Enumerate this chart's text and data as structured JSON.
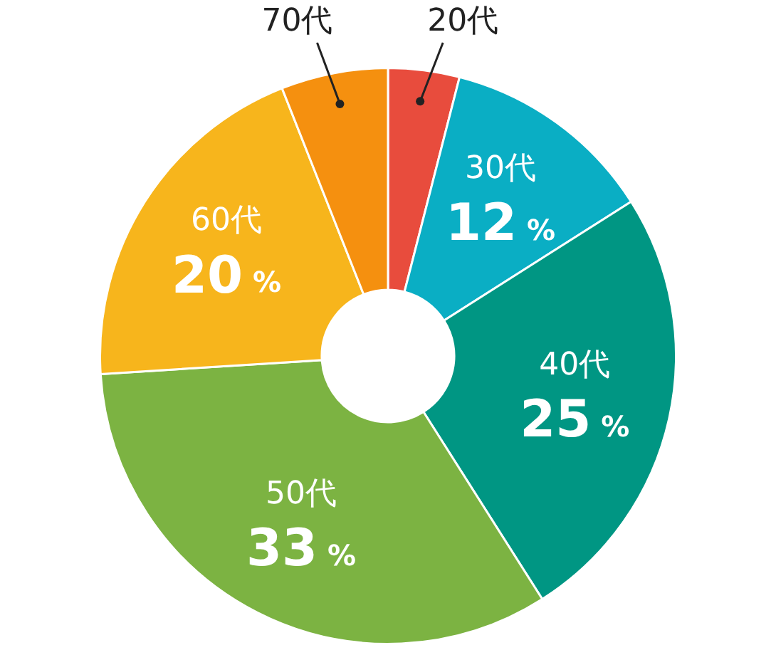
{
  "chart_data": {
    "type": "donut",
    "categories": [
      "20代",
      "30代",
      "40代",
      "50代",
      "60代",
      "70代"
    ],
    "values": [
      4,
      12,
      25,
      33,
      20,
      6
    ],
    "colors": [
      "#e84c3d",
      "#0aaec4",
      "#009683",
      "#7cb342",
      "#f7b51c",
      "#f5900f"
    ],
    "value_labels": [
      null,
      "12 %",
      "25 %",
      "33 %",
      "20 %",
      null
    ]
  }
}
